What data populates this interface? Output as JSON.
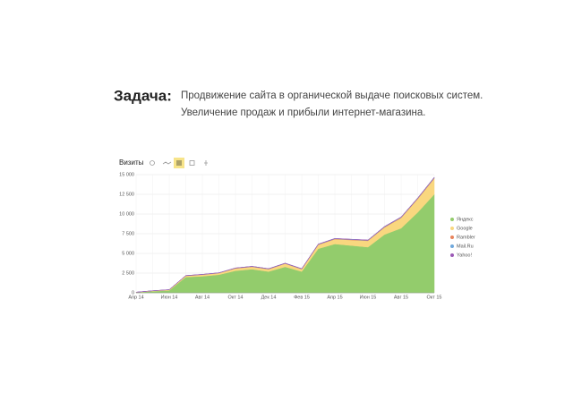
{
  "heading": "Задача:",
  "text": [
    "Продвижение сайта в органической выдаче поисковых систем.",
    "Увеличение продаж и прибыли интернет-магазина."
  ],
  "chart_data": {
    "type": "stacked_area",
    "title": "Визиты",
    "categories": [
      "Апр 14",
      null,
      "Июн 14",
      null,
      "Авг 14",
      null,
      "Окт 14",
      null,
      "Дек 14",
      null,
      "Фев 15",
      null,
      "Апр 15",
      null,
      "Июн 15",
      null,
      "Авг 15",
      null,
      "Окт 15"
    ],
    "series": [
      {
        "name": "Яндекс",
        "color": "#93cc6c",
        "values": [
          50,
          200,
          300,
          2000,
          2100,
          2300,
          2800,
          3000,
          2700,
          3300,
          2700,
          5600,
          6200,
          6000,
          5800,
          7400,
          8200,
          10200,
          12500
        ]
      },
      {
        "name": "Google",
        "color": "#f9d77f",
        "values": [
          20,
          50,
          80,
          150,
          200,
          200,
          300,
          300,
          300,
          400,
          300,
          500,
          600,
          700,
          800,
          900,
          1300,
          1700,
          2000
        ]
      },
      {
        "name": "Rambler",
        "color": "#e8845c",
        "values": [
          5,
          5,
          10,
          20,
          20,
          20,
          30,
          30,
          30,
          30,
          30,
          40,
          50,
          50,
          50,
          60,
          60,
          70,
          80
        ]
      },
      {
        "name": "Mail.Ru",
        "color": "#6fa8dc",
        "values": [
          5,
          5,
          10,
          20,
          20,
          20,
          20,
          30,
          30,
          30,
          30,
          40,
          40,
          40,
          40,
          50,
          50,
          50,
          60
        ]
      },
      {
        "name": "Yahoo!",
        "color": "#9b59b6",
        "values": [
          2,
          2,
          3,
          5,
          5,
          5,
          5,
          5,
          5,
          10,
          10,
          10,
          10,
          10,
          10,
          15,
          15,
          15,
          20
        ]
      }
    ],
    "ylim": [
      0,
      15000
    ],
    "yticks": [
      0,
      {
        "value": 2500,
        "label": "2 500"
      },
      {
        "value": 5000,
        "label": "5 000"
      },
      {
        "value": 7500,
        "label": "7 500"
      },
      {
        "value": 10000,
        "label": "10 000"
      },
      {
        "value": 12500,
        "label": "12 500"
      },
      {
        "value": 15000,
        "label": "15 000"
      }
    ],
    "grid": true
  }
}
